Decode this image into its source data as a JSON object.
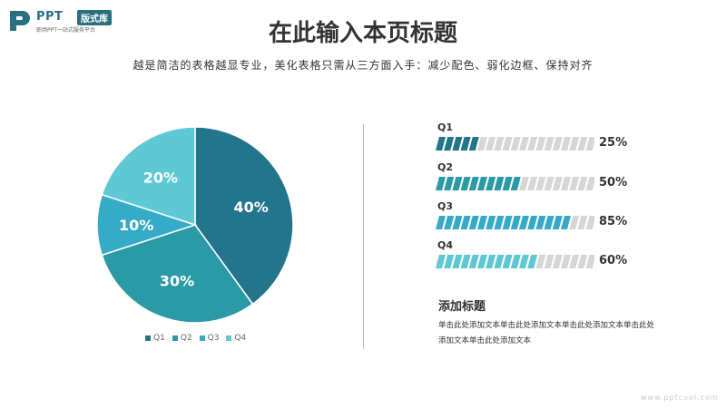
{
  "logo": {
    "brand": "PPT",
    "badge": "版式库",
    "tagline": "职场PPT一站式服务平台"
  },
  "header": {
    "title": "在此输入本页标题",
    "subtitle": "越是简洁的表格越显专业，美化表格只需从三方面入手：减少配色、弱化边框、保持对齐"
  },
  "chart_data": [
    {
      "type": "pie",
      "categories": [
        "Q1",
        "Q2",
        "Q3",
        "Q4"
      ],
      "values": [
        40,
        30,
        10,
        20
      ],
      "value_labels": [
        "40%",
        "30%",
        "10%",
        "20%"
      ],
      "colors": [
        "#23758b",
        "#2a9aa6",
        "#35abc7",
        "#5fc8d5"
      ],
      "legend": "bottom"
    },
    {
      "type": "bar",
      "orientation": "horizontal",
      "categories": [
        "Q1",
        "Q2",
        "Q3",
        "Q4"
      ],
      "values": [
        25,
        50,
        85,
        60
      ],
      "value_labels": [
        "25%",
        "50%",
        "85%",
        "60%"
      ],
      "colors": [
        "#23758b",
        "#2a9aa6",
        "#35abc7",
        "#5fc8d5"
      ],
      "track_color": "#d6d6d6",
      "xlim": [
        0,
        100
      ]
    }
  ],
  "textbox": {
    "title": "添加标题",
    "body": "单击此处添加文本单击此处添加文本单击此处添加文本单击此处添加文本单击此处添加文本"
  },
  "watermark": "www.pptcool.com"
}
